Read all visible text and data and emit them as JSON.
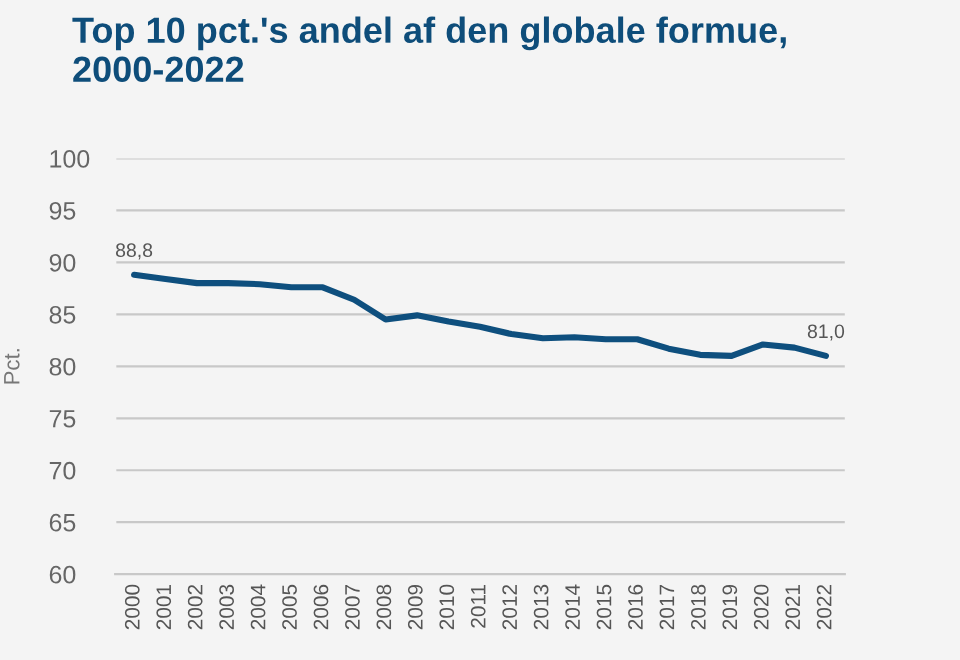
{
  "chart_data": {
    "type": "line",
    "title": "Top 10 pct.'s andel af den globale formue,\n2000-2022",
    "ylabel": "Pct.",
    "categories": [
      "2000",
      "2001",
      "2002",
      "2003",
      "2004",
      "2005",
      "2006",
      "2007",
      "2008",
      "2009",
      "2010",
      "2011",
      "2012",
      "2013",
      "2014",
      "2015",
      "2016",
      "2017",
      "2018",
      "2019",
      "2020",
      "2021",
      "2022"
    ],
    "series": [
      {
        "color": "#0e4f7e",
        "values": [
          88.8,
          88.4,
          88.0,
          88.0,
          87.9,
          87.6,
          87.6,
          86.4,
          84.5,
          84.9,
          84.3,
          83.8,
          83.1,
          82.7,
          82.8,
          82.6,
          82.6,
          81.7,
          81.1,
          81.0,
          82.1,
          81.8,
          81.0
        ],
        "value_labels": [
          "88,8",
          null,
          null,
          null,
          null,
          null,
          null,
          null,
          null,
          null,
          null,
          null,
          null,
          null,
          null,
          null,
          null,
          null,
          null,
          null,
          null,
          null,
          "81,0"
        ]
      }
    ],
    "ylim": [
      60,
      100
    ],
    "yticks": [
      60,
      65,
      70,
      75,
      80,
      85,
      90,
      95,
      100
    ],
    "grid": "y",
    "marker": "none",
    "line_style": "solid"
  }
}
